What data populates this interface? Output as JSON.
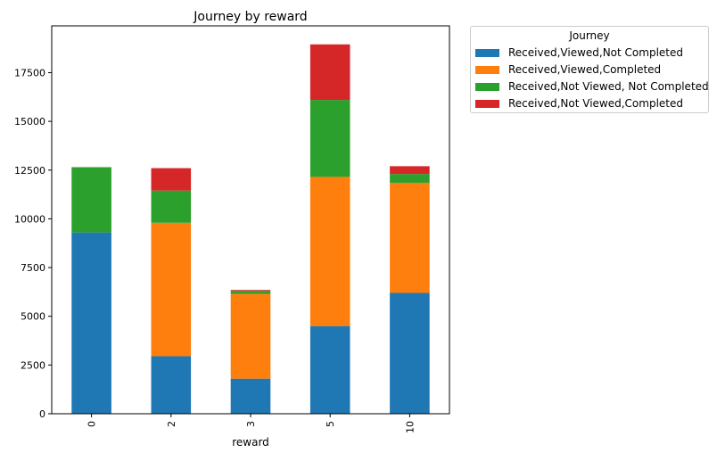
{
  "chart_data": {
    "type": "bar",
    "stacked": true,
    "title": "Journey by reward",
    "xlabel": "reward",
    "ylabel": "",
    "categories": [
      "0",
      "2",
      "3",
      "5",
      "10"
    ],
    "ylim": [
      0,
      19900
    ],
    "yticks": [
      0,
      2500,
      5000,
      7500,
      10000,
      12500,
      15000,
      17500
    ],
    "ytick_labels": [
      "0",
      "2500",
      "5000",
      "7500",
      "10000",
      "12500",
      "15000",
      "17500"
    ],
    "grid": false,
    "legend_title": "Journey",
    "legend_position": "outside top-right",
    "series": [
      {
        "name": "Received,Viewed,Not Completed",
        "color": "#1f77b4",
        "values": [
          9300,
          2950,
          1800,
          4500,
          6200
        ]
      },
      {
        "name": "Received,Viewed,Completed",
        "color": "#ff7f0e",
        "values": [
          0,
          6850,
          4350,
          7650,
          5650
        ]
      },
      {
        "name": "Received,Not Viewed, Not Completed",
        "color": "#2ca02c",
        "values": [
          3350,
          1650,
          150,
          3950,
          450
        ]
      },
      {
        "name": "Received,Not Viewed,Completed",
        "color": "#d62728",
        "values": [
          0,
          1150,
          50,
          2850,
          400
        ]
      }
    ]
  }
}
